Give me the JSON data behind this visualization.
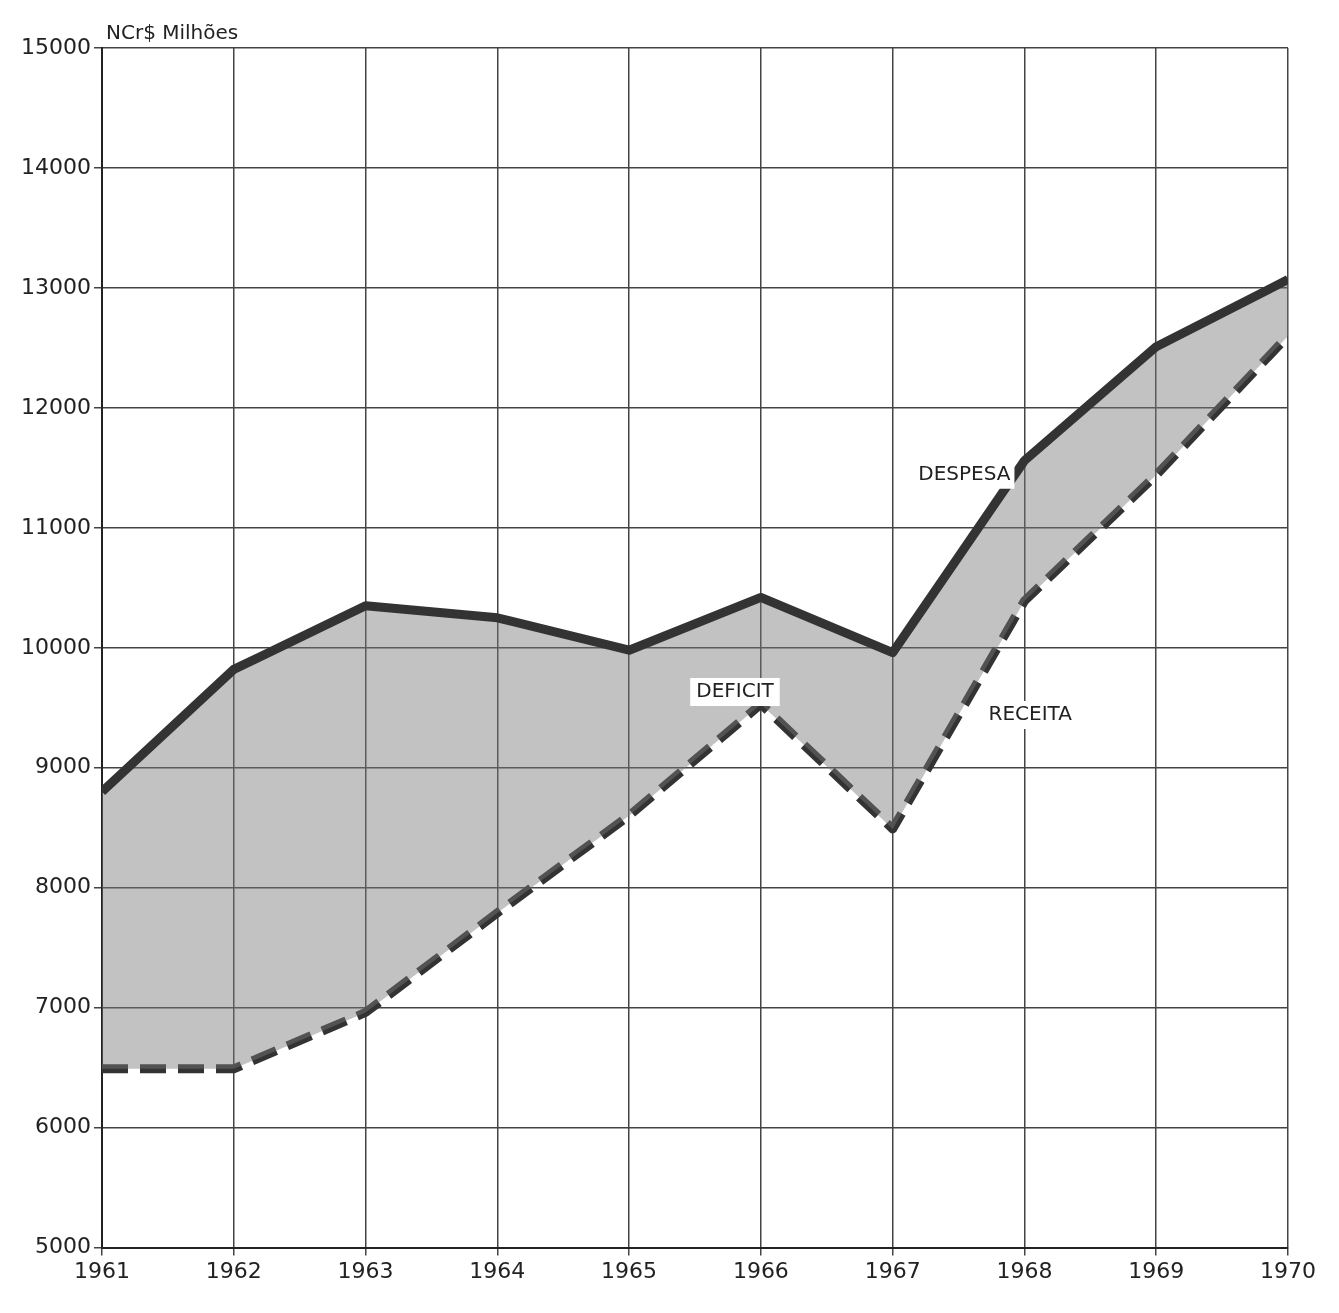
{
  "chart_data": {
    "type": "line",
    "ylabel": "NCr$ Milhões",
    "x": [
      1961,
      1962,
      1963,
      1964,
      1965,
      1966,
      1967,
      1968,
      1969,
      1970
    ],
    "series": [
      {
        "name": "DESPESA",
        "type": "area",
        "color": "#333333",
        "line_style": "solid",
        "values": [
          8800,
          9820,
          10350,
          10250,
          9980,
          10420,
          9960,
          11560,
          12510,
          13070
        ]
      },
      {
        "name": "RECEITA",
        "color": "#333333",
        "line_style": "dashed",
        "values": [
          6490,
          6490,
          6960,
          7790,
          8600,
          9530,
          8490,
          10390,
          11440,
          12600
        ]
      }
    ],
    "annotations": [
      "DEFICIT"
    ],
    "xlim": [
      1961,
      1970
    ],
    "xticks": [
      1961,
      1962,
      1963,
      1964,
      1965,
      1966,
      1967,
      1968,
      1969,
      1970
    ],
    "ylim": [
      5000,
      15000
    ],
    "yticks": [
      5000,
      6000,
      7000,
      8000,
      9000,
      10000,
      11000,
      12000,
      13000,
      14000,
      15000
    ],
    "grid": true,
    "legend": false,
    "marker": "none"
  }
}
